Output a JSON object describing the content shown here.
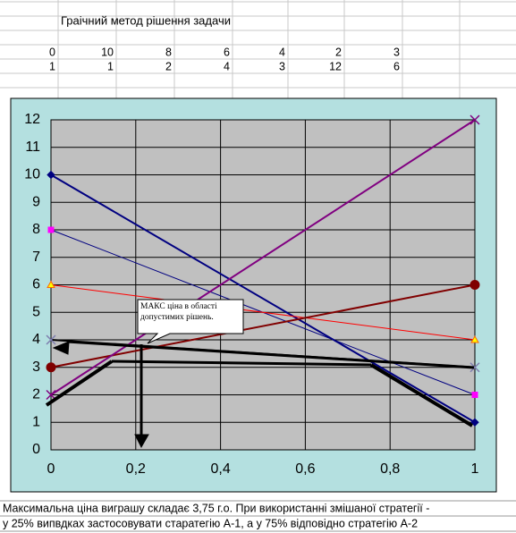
{
  "sheet": {
    "title": "Граічний метод рішення задачи",
    "rows": [
      [
        0,
        10,
        8,
        6,
        4,
        2,
        3
      ],
      [
        1,
        1,
        2,
        4,
        3,
        12,
        6
      ]
    ]
  },
  "chart_data": {
    "type": "line",
    "x": [
      0,
      1
    ],
    "series": [
      {
        "color": "#000080",
        "marker": "diamond",
        "marker_color": "#000080",
        "width": 2,
        "values": [
          10,
          1
        ]
      },
      {
        "color": "#000080",
        "marker": "square",
        "marker_color": "#ff00ff",
        "width": 1,
        "values": [
          8,
          2
        ]
      },
      {
        "color": "#ff0000",
        "marker": "triangle",
        "marker_color": "#ffff00",
        "width": 1,
        "values": [
          6,
          4
        ]
      },
      {
        "color": "#000000",
        "marker": "x",
        "marker_color": "#7f7faf",
        "width": 2,
        "values": [
          4,
          3
        ]
      },
      {
        "color": "#800000",
        "marker": "circle",
        "marker_color": "#800000",
        "width": 2,
        "values": [
          3,
          6
        ]
      },
      {
        "color": "#800080",
        "marker": "x",
        "marker_color": "#800080",
        "width": 2,
        "values": [
          2,
          12
        ]
      }
    ],
    "xlim": [
      0,
      1
    ],
    "xticks": [
      0,
      {
        "value": 0.2,
        "label": "0,2"
      },
      {
        "value": 0.4,
        "label": "0,4"
      },
      {
        "value": 0.6,
        "label": "0,6"
      },
      {
        "value": 0.8,
        "label": "0,8"
      },
      1
    ],
    "ylim": [
      0,
      12
    ],
    "yticks": [
      0,
      1,
      2,
      3,
      4,
      5,
      6,
      7,
      8,
      9,
      10,
      11,
      12
    ],
    "grid": true,
    "annotation": "МАКС ціна в області допустимих рішень."
  },
  "footer": [
    "Максимальна ціна виграшу складає 3,75 г.о. При використанні змішаної стратегії -",
    "у 25% випвдках застосовувати старатегію А-1, а у 75% відповідно стратегію А-2"
  ]
}
